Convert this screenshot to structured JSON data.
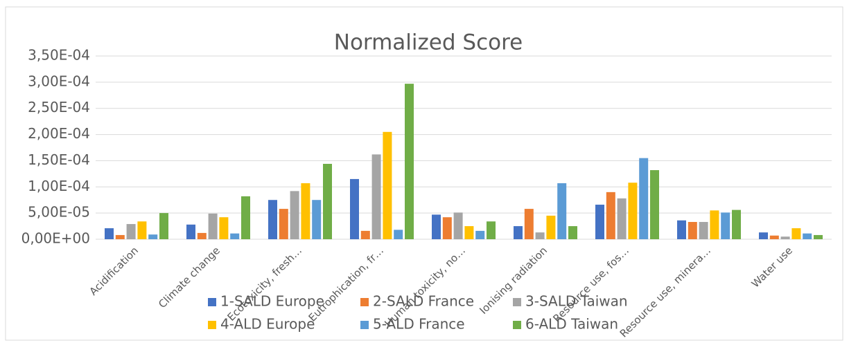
{
  "chart_data": {
    "type": "bar",
    "title": "Normalized Score",
    "categories": [
      "Acidification",
      "Climate change",
      "Ecotoxicity, fresh…",
      "Eutrophication, fr…",
      "Human toxicity, no…",
      "Ionising radiation",
      "Resource use, fos…",
      "Resource use, minera…",
      "Water use"
    ],
    "series": [
      {
        "name": "1-SALD Europe",
        "color": "#4472c4",
        "values": [
          2.1e-05,
          2.8e-05,
          7.5e-05,
          0.000115,
          4.7e-05,
          2.5e-05,
          6.6e-05,
          3.6e-05,
          1.3e-05
        ]
      },
      {
        "name": "2-SALD France",
        "color": "#ed7d31",
        "values": [
          8e-06,
          1.2e-05,
          5.8e-05,
          1.6e-05,
          4.2e-05,
          5.8e-05,
          9e-05,
          3.3e-05,
          7e-06
        ]
      },
      {
        "name": "3-SALD Taiwan",
        "color": "#a5a5a5",
        "values": [
          2.9e-05,
          4.9e-05,
          9.2e-05,
          0.000162,
          5.1e-05,
          1.3e-05,
          7.8e-05,
          3.3e-05,
          5e-06
        ]
      },
      {
        "name": "4-ALD Europe",
        "color": "#ffc000",
        "values": [
          3.4e-05,
          4.2e-05,
          0.000107,
          0.000205,
          2.5e-05,
          4.5e-05,
          0.000108,
          5.5e-05,
          2.1e-05
        ]
      },
      {
        "name": "5-ALD France",
        "color": "#5b9bd5",
        "values": [
          9e-06,
          1.1e-05,
          7.5e-05,
          1.8e-05,
          1.6e-05,
          0.000107,
          0.000155,
          5.1e-05,
          1.1e-05
        ]
      },
      {
        "name": "6-ALD Taiwan",
        "color": "#70ad47",
        "values": [
          5e-05,
          8.2e-05,
          0.000144,
          0.000297,
          3.4e-05,
          2.5e-05,
          0.000132,
          5.6e-05,
          8e-06
        ]
      }
    ],
    "ylim": [
      0,
      0.00035
    ],
    "yticks": [
      {
        "value": 0,
        "label": "0,00E+00"
      },
      {
        "value": 5e-05,
        "label": "5,00E-05"
      },
      {
        "value": 0.0001,
        "label": "1,00E-04"
      },
      {
        "value": 0.00015,
        "label": "1,50E-04"
      },
      {
        "value": 0.0002,
        "label": "2,00E-04"
      },
      {
        "value": 0.00025,
        "label": "2,50E-04"
      },
      {
        "value": 0.0003,
        "label": "3,00E-04"
      },
      {
        "value": 0.00035,
        "label": "3,50E-04"
      }
    ],
    "grid": true,
    "legend": "bottom"
  }
}
